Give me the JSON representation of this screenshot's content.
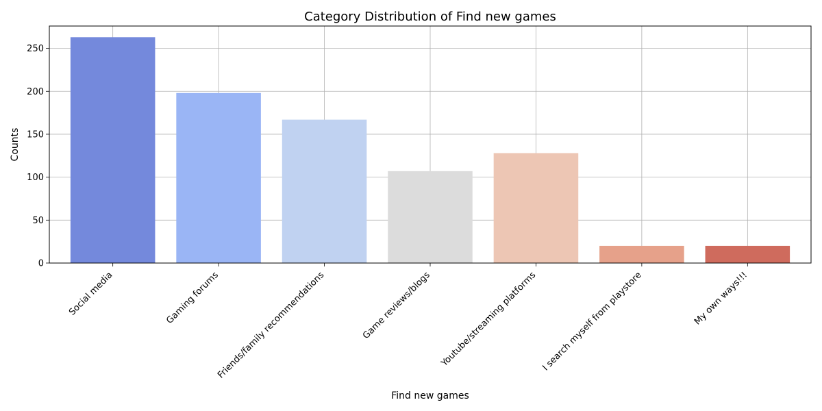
{
  "chart_data": {
    "type": "bar",
    "title": "Category Distribution of Find new games",
    "xlabel": "Find new games",
    "ylabel": "Counts",
    "categories": [
      "Social media",
      "Gaming forums",
      "Friends/family recommendations",
      "Game reviews/blogs",
      "Youtube/streaming platforms",
      "I search myself from playstore",
      "My own ways!!!"
    ],
    "values": [
      263,
      198,
      167,
      107,
      128,
      20,
      20
    ],
    "colors": [
      "#7489dc",
      "#9ab5f5",
      "#c0d2f1",
      "#dcdcdc",
      "#edc6b4",
      "#e6a18a",
      "#cf6b5d"
    ],
    "ylim": [
      0,
      276
    ],
    "yticks": [
      0,
      50,
      100,
      150,
      200,
      250
    ],
    "grid": true,
    "legend": "none"
  }
}
